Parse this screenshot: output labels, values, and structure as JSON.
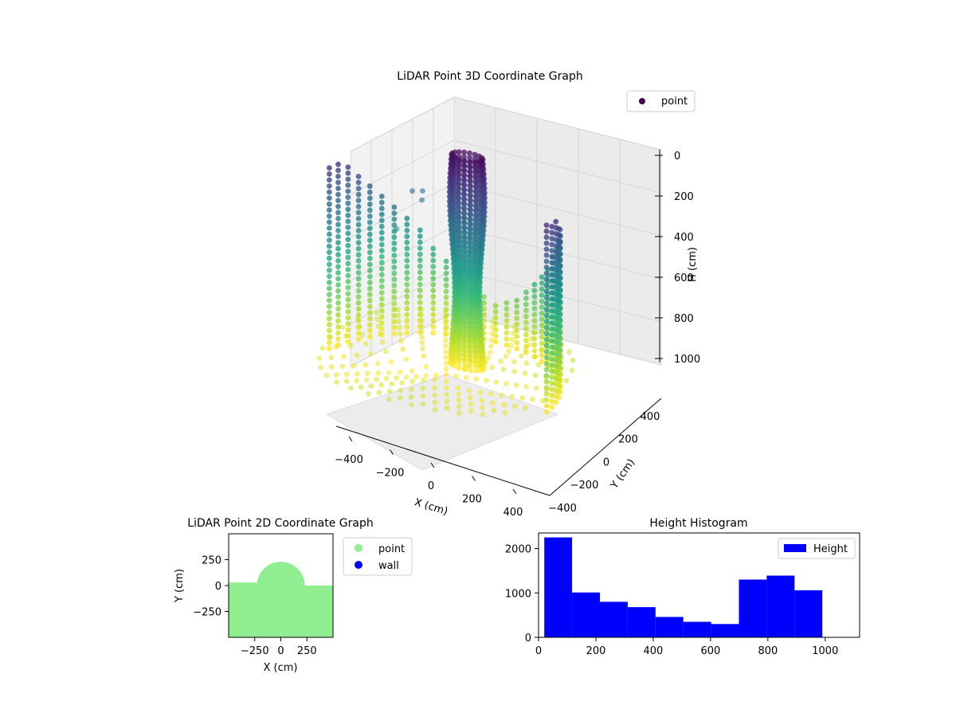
{
  "colors": {
    "low_height": "#440154",
    "mid_height": "#21918c",
    "high_height": "#fde725",
    "point_2d": "#90ee90",
    "wall_2d": "#0000ff",
    "histogram_bar": "#0000ff"
  },
  "chart_data": [
    {
      "type": "scatter",
      "projection": "3d",
      "title": "LiDAR Point 3D Coordinate Graph",
      "xlabel": "X (cm)",
      "ylabel": "Y (cm)",
      "zlabel": "H (cm)",
      "x_ticks": [
        "−400",
        "−200",
        "0",
        "200",
        "400"
      ],
      "y_ticks": [
        "−400",
        "−200",
        "0",
        "200",
        "400"
      ],
      "z_ticks": [
        "0",
        "200",
        "400",
        "600",
        "800",
        "1000"
      ],
      "xlim": [
        -500,
        500
      ],
      "ylim": [
        -500,
        500
      ],
      "zlim": [
        0,
        1100
      ],
      "z_inverted": true,
      "colormap": "viridis",
      "color_by": "height",
      "legend": [
        "point"
      ],
      "legend_position": "upper-right",
      "grid": true,
      "series": [
        {
          "name": "point",
          "shape": "floor-disc",
          "radius": 470,
          "height_range": [
            0,
            100
          ]
        },
        {
          "name": "point",
          "shape": "back-wall-arc",
          "radius": 470,
          "height_range": [
            0,
            1000
          ]
        },
        {
          "name": "point",
          "shape": "central-column",
          "center": [
            0,
            50
          ],
          "radius": 60,
          "height_range": [
            0,
            1000
          ]
        },
        {
          "name": "point",
          "shape": "stray-points",
          "points": [
            [
              -300,
              280,
              350
            ],
            [
              -260,
              280,
              380
            ],
            [
              -280,
              320,
              360
            ],
            [
              -320,
              200,
              500
            ]
          ]
        }
      ]
    },
    {
      "type": "scatter",
      "projection": "2d",
      "title": "LiDAR Point 2D Coordinate Graph",
      "xlabel": "X (cm)",
      "ylabel": "Y (cm)",
      "x_ticks": [
        "−250",
        "0",
        "250"
      ],
      "y_ticks": [
        "250",
        "0",
        "−250"
      ],
      "xlim": [
        -500,
        500
      ],
      "ylim": [
        -500,
        500
      ],
      "legend": [
        "point",
        "wall"
      ],
      "legend_position": "outside-right",
      "series": [
        {
          "name": "point",
          "region": "y <= 30 plus semicircle of radius 230 centered at (0,0)"
        },
        {
          "name": "wall",
          "points": []
        }
      ]
    },
    {
      "type": "bar",
      "subtype": "histogram",
      "title": "Height Histogram",
      "xlabel": "",
      "ylabel": "",
      "x_ticks": [
        "0",
        "200",
        "400",
        "600",
        "800",
        "1000"
      ],
      "y_ticks": [
        "0",
        "1000",
        "2000"
      ],
      "xlim": [
        0,
        1120
      ],
      "ylim": [
        0,
        2350
      ],
      "legend": [
        "Height"
      ],
      "legend_position": "upper-right",
      "bin_edges": [
        20,
        117,
        214,
        311,
        408,
        505,
        602,
        699,
        796,
        893,
        990
      ],
      "values": [
        2250,
        1010,
        800,
        680,
        460,
        350,
        300,
        1300,
        1390,
        1060
      ],
      "series": [
        {
          "name": "Height"
        }
      ]
    }
  ]
}
